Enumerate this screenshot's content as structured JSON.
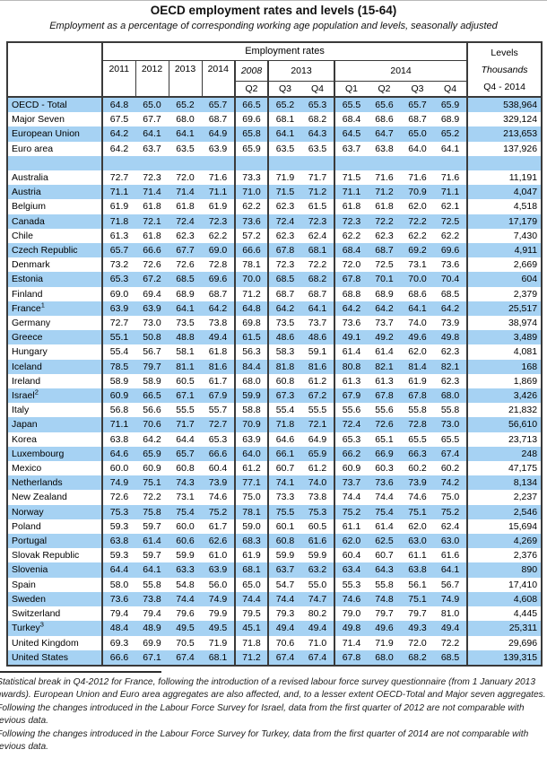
{
  "page": {
    "title": "OECD employment rates and levels (15-64)",
    "subtitle": "Employment as a percentage of corresponding working age population and levels, seasonally adjusted"
  },
  "colors": {
    "row_blue": "#a6d2f3",
    "border": "#3a3a3a"
  },
  "table": {
    "header": {
      "rates_group": "Employment rates",
      "levels_line1": "Levels",
      "levels_line2": "Thousands",
      "levels_line3": "Q4 - 2014",
      "annual_years": [
        "2011",
        "2012",
        "2013",
        "2014"
      ],
      "q2008_year": "2008",
      "q2013_year": "2013",
      "q2014_year": "2014",
      "q2008_quarters": [
        "Q2"
      ],
      "q2013_quarters": [
        "Q3",
        "Q4"
      ],
      "q2014_quarters": [
        "Q1",
        "Q2",
        "Q3",
        "Q4"
      ]
    },
    "rows": [
      {
        "name": "OECD - Total",
        "sup": "",
        "shaded": true,
        "blank": false,
        "values": [
          "64.8",
          "65.0",
          "65.2",
          "65.7",
          "66.5",
          "65.2",
          "65.3",
          "65.5",
          "65.6",
          "65.7",
          "65.9"
        ],
        "level": "538,964"
      },
      {
        "name": "Major Seven",
        "sup": "",
        "shaded": false,
        "blank": false,
        "values": [
          "67.5",
          "67.7",
          "68.0",
          "68.7",
          "69.6",
          "68.1",
          "68.2",
          "68.4",
          "68.6",
          "68.7",
          "68.9"
        ],
        "level": "329,124"
      },
      {
        "name": "European Union",
        "sup": "",
        "shaded": true,
        "blank": false,
        "values": [
          "64.2",
          "64.1",
          "64.1",
          "64.9",
          "65.8",
          "64.1",
          "64.3",
          "64.5",
          "64.7",
          "65.0",
          "65.2"
        ],
        "level": "213,653"
      },
      {
        "name": "Euro area",
        "sup": "",
        "shaded": false,
        "blank": false,
        "values": [
          "64.2",
          "63.7",
          "63.5",
          "63.9",
          "65.9",
          "63.5",
          "63.5",
          "63.7",
          "63.8",
          "64.0",
          "64.1"
        ],
        "level": "137,926"
      },
      {
        "name": "",
        "sup": "",
        "shaded": true,
        "blank": true,
        "values": [
          "",
          "",
          "",
          "",
          "",
          "",
          "",
          "",
          "",
          "",
          ""
        ],
        "level": ""
      },
      {
        "name": "Australia",
        "sup": "",
        "shaded": false,
        "blank": false,
        "values": [
          "72.7",
          "72.3",
          "72.0",
          "71.6",
          "73.3",
          "71.9",
          "71.7",
          "71.5",
          "71.6",
          "71.6",
          "71.6"
        ],
        "level": "11,191"
      },
      {
        "name": "Austria",
        "sup": "",
        "shaded": true,
        "blank": false,
        "values": [
          "71.1",
          "71.4",
          "71.4",
          "71.1",
          "71.0",
          "71.5",
          "71.2",
          "71.1",
          "71.2",
          "70.9",
          "71.1"
        ],
        "level": "4,047"
      },
      {
        "name": "Belgium",
        "sup": "",
        "shaded": false,
        "blank": false,
        "values": [
          "61.9",
          "61.8",
          "61.8",
          "61.9",
          "62.2",
          "62.3",
          "61.5",
          "61.8",
          "61.8",
          "62.0",
          "62.1"
        ],
        "level": "4,518"
      },
      {
        "name": "Canada",
        "sup": "",
        "shaded": true,
        "blank": false,
        "values": [
          "71.8",
          "72.1",
          "72.4",
          "72.3",
          "73.6",
          "72.4",
          "72.3",
          "72.3",
          "72.2",
          "72.2",
          "72.5"
        ],
        "level": "17,179"
      },
      {
        "name": "Chile",
        "sup": "",
        "shaded": false,
        "blank": false,
        "values": [
          "61.3",
          "61.8",
          "62.3",
          "62.2",
          "57.2",
          "62.3",
          "62.4",
          "62.2",
          "62.3",
          "62.2",
          "62.2"
        ],
        "level": "7,430"
      },
      {
        "name": "Czech Republic",
        "sup": "",
        "shaded": true,
        "blank": false,
        "values": [
          "65.7",
          "66.6",
          "67.7",
          "69.0",
          "66.6",
          "67.8",
          "68.1",
          "68.4",
          "68.7",
          "69.2",
          "69.6"
        ],
        "level": "4,911"
      },
      {
        "name": "Denmark",
        "sup": "",
        "shaded": false,
        "blank": false,
        "values": [
          "73.2",
          "72.6",
          "72.6",
          "72.8",
          "78.1",
          "72.3",
          "72.2",
          "72.0",
          "72.5",
          "73.1",
          "73.6"
        ],
        "level": "2,669"
      },
      {
        "name": "Estonia",
        "sup": "",
        "shaded": true,
        "blank": false,
        "values": [
          "65.3",
          "67.2",
          "68.5",
          "69.6",
          "70.0",
          "68.5",
          "68.2",
          "67.8",
          "70.1",
          "70.0",
          "70.4"
        ],
        "level": "604"
      },
      {
        "name": "Finland",
        "sup": "",
        "shaded": false,
        "blank": false,
        "values": [
          "69.0",
          "69.4",
          "68.9",
          "68.7",
          "71.2",
          "68.7",
          "68.7",
          "68.8",
          "68.9",
          "68.6",
          "68.5"
        ],
        "level": "2,379"
      },
      {
        "name": "France",
        "sup": "1",
        "shaded": true,
        "blank": false,
        "values": [
          "63.9",
          "63.9",
          "64.1",
          "64.2",
          "64.8",
          "64.2",
          "64.1",
          "64.2",
          "64.2",
          "64.1",
          "64.2"
        ],
        "level": "25,517"
      },
      {
        "name": "Germany",
        "sup": "",
        "shaded": false,
        "blank": false,
        "values": [
          "72.7",
          "73.0",
          "73.5",
          "73.8",
          "69.8",
          "73.5",
          "73.7",
          "73.6",
          "73.7",
          "74.0",
          "73.9"
        ],
        "level": "38,974"
      },
      {
        "name": "Greece",
        "sup": "",
        "shaded": true,
        "blank": false,
        "values": [
          "55.1",
          "50.8",
          "48.8",
          "49.4",
          "61.5",
          "48.6",
          "48.6",
          "49.1",
          "49.2",
          "49.6",
          "49.8"
        ],
        "level": "3,489"
      },
      {
        "name": "Hungary",
        "sup": "",
        "shaded": false,
        "blank": false,
        "values": [
          "55.4",
          "56.7",
          "58.1",
          "61.8",
          "56.3",
          "58.3",
          "59.1",
          "61.4",
          "61.4",
          "62.0",
          "62.3"
        ],
        "level": "4,081"
      },
      {
        "name": "Iceland",
        "sup": "",
        "shaded": true,
        "blank": false,
        "values": [
          "78.5",
          "79.7",
          "81.1",
          "81.6",
          "84.4",
          "81.8",
          "81.6",
          "80.8",
          "82.1",
          "81.4",
          "82.1"
        ],
        "level": "168"
      },
      {
        "name": "Ireland",
        "sup": "",
        "shaded": false,
        "blank": false,
        "values": [
          "58.9",
          "58.9",
          "60.5",
          "61.7",
          "68.0",
          "60.8",
          "61.2",
          "61.3",
          "61.3",
          "61.9",
          "62.3"
        ],
        "level": "1,869"
      },
      {
        "name": "Israel",
        "sup": "2",
        "shaded": true,
        "blank": false,
        "values": [
          "60.9",
          "66.5",
          "67.1",
          "67.9",
          "59.9",
          "67.3",
          "67.2",
          "67.9",
          "67.8",
          "67.8",
          "68.0"
        ],
        "level": "3,426"
      },
      {
        "name": "Italy",
        "sup": "",
        "shaded": false,
        "blank": false,
        "values": [
          "56.8",
          "56.6",
          "55.5",
          "55.7",
          "58.8",
          "55.4",
          "55.5",
          "55.6",
          "55.6",
          "55.8",
          "55.8"
        ],
        "level": "21,832"
      },
      {
        "name": "Japan",
        "sup": "",
        "shaded": true,
        "blank": false,
        "values": [
          "71.1",
          "70.6",
          "71.7",
          "72.7",
          "70.9",
          "71.8",
          "72.1",
          "72.4",
          "72.6",
          "72.8",
          "73.0"
        ],
        "level": "56,610"
      },
      {
        "name": "Korea",
        "sup": "",
        "shaded": false,
        "blank": false,
        "values": [
          "63.8",
          "64.2",
          "64.4",
          "65.3",
          "63.9",
          "64.6",
          "64.9",
          "65.3",
          "65.1",
          "65.5",
          "65.5"
        ],
        "level": "23,713"
      },
      {
        "name": "Luxembourg",
        "sup": "",
        "shaded": true,
        "blank": false,
        "values": [
          "64.6",
          "65.9",
          "65.7",
          "66.6",
          "64.0",
          "66.1",
          "65.9",
          "66.2",
          "66.9",
          "66.3",
          "67.4"
        ],
        "level": "248"
      },
      {
        "name": "Mexico",
        "sup": "",
        "shaded": false,
        "blank": false,
        "values": [
          "60.0",
          "60.9",
          "60.8",
          "60.4",
          "61.2",
          "60.7",
          "61.2",
          "60.9",
          "60.3",
          "60.2",
          "60.2"
        ],
        "level": "47,175"
      },
      {
        "name": "Netherlands",
        "sup": "",
        "shaded": true,
        "blank": false,
        "values": [
          "74.9",
          "75.1",
          "74.3",
          "73.9",
          "77.1",
          "74.1",
          "74.0",
          "73.7",
          "73.6",
          "73.9",
          "74.2"
        ],
        "level": "8,134"
      },
      {
        "name": "New Zealand",
        "sup": "",
        "shaded": false,
        "blank": false,
        "values": [
          "72.6",
          "72.2",
          "73.1",
          "74.6",
          "75.0",
          "73.3",
          "73.8",
          "74.4",
          "74.4",
          "74.6",
          "75.0"
        ],
        "level": "2,237"
      },
      {
        "name": "Norway",
        "sup": "",
        "shaded": true,
        "blank": false,
        "values": [
          "75.3",
          "75.8",
          "75.4",
          "75.2",
          "78.1",
          "75.5",
          "75.3",
          "75.2",
          "75.4",
          "75.1",
          "75.2"
        ],
        "level": "2,546"
      },
      {
        "name": "Poland",
        "sup": "",
        "shaded": false,
        "blank": false,
        "values": [
          "59.3",
          "59.7",
          "60.0",
          "61.7",
          "59.0",
          "60.1",
          "60.5",
          "61.1",
          "61.4",
          "62.0",
          "62.4"
        ],
        "level": "15,694"
      },
      {
        "name": "Portugal",
        "sup": "",
        "shaded": true,
        "blank": false,
        "values": [
          "63.8",
          "61.4",
          "60.6",
          "62.6",
          "68.3",
          "60.8",
          "61.6",
          "62.0",
          "62.5",
          "63.0",
          "63.0"
        ],
        "level": "4,269"
      },
      {
        "name": "Slovak Republic",
        "sup": "",
        "shaded": false,
        "blank": false,
        "values": [
          "59.3",
          "59.7",
          "59.9",
          "61.0",
          "61.9",
          "59.9",
          "59.9",
          "60.4",
          "60.7",
          "61.1",
          "61.6"
        ],
        "level": "2,376"
      },
      {
        "name": "Slovenia",
        "sup": "",
        "shaded": true,
        "blank": false,
        "values": [
          "64.4",
          "64.1",
          "63.3",
          "63.9",
          "68.1",
          "63.7",
          "63.2",
          "63.4",
          "64.3",
          "63.8",
          "64.1"
        ],
        "level": "890"
      },
      {
        "name": "Spain",
        "sup": "",
        "shaded": false,
        "blank": false,
        "values": [
          "58.0",
          "55.8",
          "54.8",
          "56.0",
          "65.0",
          "54.7",
          "55.0",
          "55.3",
          "55.8",
          "56.1",
          "56.7"
        ],
        "level": "17,410"
      },
      {
        "name": "Sweden",
        "sup": "",
        "shaded": true,
        "blank": false,
        "values": [
          "73.6",
          "73.8",
          "74.4",
          "74.9",
          "74.4",
          "74.4",
          "74.7",
          "74.6",
          "74.8",
          "75.1",
          "74.9"
        ],
        "level": "4,608"
      },
      {
        "name": "Switzerland",
        "sup": "",
        "shaded": false,
        "blank": false,
        "values": [
          "79.4",
          "79.4",
          "79.6",
          "79.9",
          "79.5",
          "79.3",
          "80.2",
          "79.0",
          "79.7",
          "79.7",
          "81.0"
        ],
        "level": "4,445"
      },
      {
        "name": "Turkey",
        "sup": "3",
        "shaded": true,
        "blank": false,
        "values": [
          "48.4",
          "48.9",
          "49.5",
          "49.5",
          "45.1",
          "49.4",
          "49.4",
          "49.8",
          "49.6",
          "49.3",
          "49.4"
        ],
        "level": "25,311"
      },
      {
        "name": "United Kingdom",
        "sup": "",
        "shaded": false,
        "blank": false,
        "values": [
          "69.3",
          "69.9",
          "70.5",
          "71.9",
          "71.8",
          "70.6",
          "71.0",
          "71.4",
          "71.9",
          "72.0",
          "72.2"
        ],
        "level": "29,696"
      },
      {
        "name": "United States",
        "sup": "",
        "shaded": true,
        "blank": false,
        "values": [
          "66.6",
          "67.1",
          "67.4",
          "68.1",
          "71.2",
          "67.4",
          "67.4",
          "67.8",
          "68.0",
          "68.2",
          "68.5"
        ],
        "level": "139,315"
      }
    ]
  },
  "footnotes": [
    {
      "marker": "1",
      "text": "Statistical break in Q4-2012 for France, following the introduction of a revised labour force survey questionnaire (from 1 January 2013 onwards). European Union and Euro area aggregates are also affected, and, to a lesser extent OECD-Total and Major seven aggregates."
    },
    {
      "marker": "2",
      "text": "Following the changes introduced in the Labour Force Survey for Israel, data from the first quarter of 2012 are not comparable with previous data."
    },
    {
      "marker": "3",
      "text": "Following the changes introduced in the Labour Force Survey for Turkey, data from the first quarter of 2014 are not comparable with previous data."
    }
  ]
}
